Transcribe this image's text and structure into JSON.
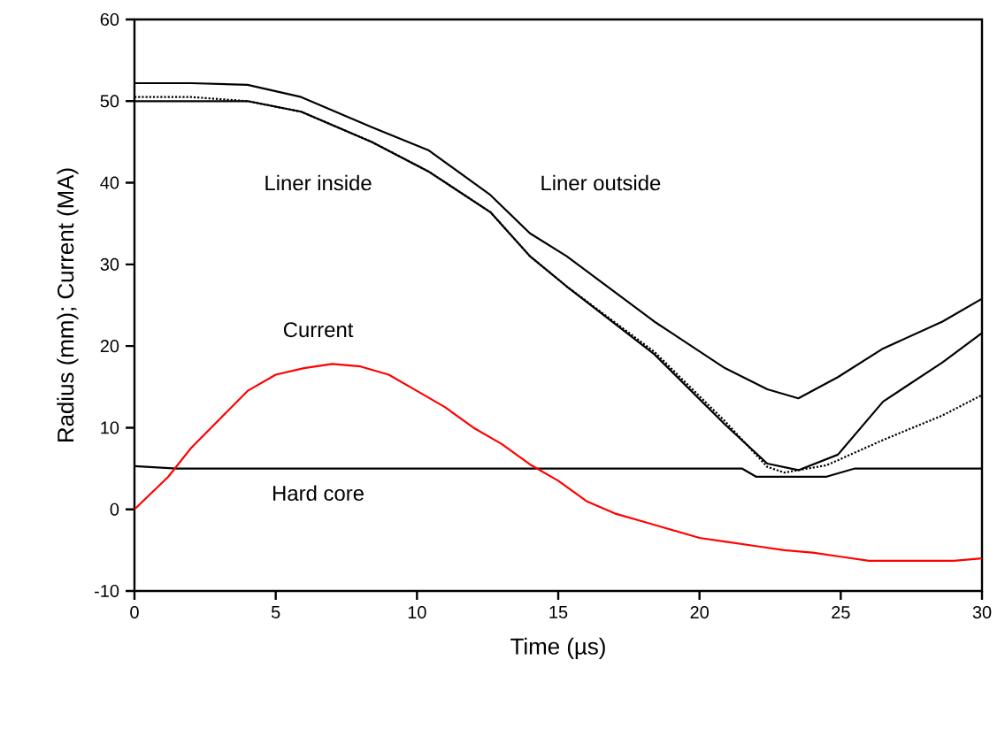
{
  "chart_data": {
    "type": "line",
    "xlabel": "Time (µs)",
    "ylabel": "Radius (mm); Current (MA)",
    "xlim": [
      0,
      30
    ],
    "ylim": [
      -10,
      60
    ],
    "xticks": [
      0,
      5,
      10,
      15,
      20,
      25,
      30
    ],
    "yticks": [
      -10,
      0,
      10,
      20,
      30,
      40,
      50,
      60
    ],
    "grid": false,
    "legend": false,
    "marker": "none",
    "series": [
      {
        "name": "Liner inside",
        "color": "#000000",
        "line_style": "solid",
        "x": [
          0,
          2,
          4,
          5.9,
          8.4,
          10.4,
          12.6,
          14,
          15.3,
          18.4,
          20.9,
          22.4,
          23.5,
          24.9,
          26.5,
          28.6,
          30
        ],
        "values": [
          50,
          50,
          50,
          48.7,
          45,
          41.4,
          36.4,
          31,
          27.3,
          19,
          10.4,
          5.6,
          4.8,
          6.7,
          13.2,
          18,
          21.6
        ]
      },
      {
        "name": "Liner outside",
        "color": "#000000",
        "line_style": "solid",
        "x": [
          0,
          2,
          4,
          5.9,
          8.4,
          10.4,
          12.6,
          14,
          15.3,
          18.4,
          20.9,
          22.4,
          23.5,
          24.9,
          26.5,
          28.6,
          30
        ],
        "values": [
          52.2,
          52.2,
          52,
          50.5,
          46.8,
          44,
          38.5,
          33.8,
          31,
          23,
          17.3,
          14.7,
          13.6,
          16.2,
          19.7,
          23,
          25.8
        ]
      },
      {
        "color": "#000000",
        "line_style": "dotted",
        "x": [
          0,
          2,
          4,
          5.9,
          8.4,
          10.4,
          12.6,
          14,
          15.3,
          18.4,
          20.9,
          22.4,
          23,
          24.5,
          26.5,
          28.6,
          30
        ],
        "values": [
          50.5,
          50.5,
          50,
          48.7,
          45,
          41.4,
          36.4,
          31,
          27.3,
          19.3,
          10.8,
          5.2,
          4.5,
          5.4,
          8.5,
          11.5,
          14
        ]
      },
      {
        "name": "Hard core",
        "color": "#000000",
        "line_style": "solid",
        "x": [
          0,
          1.5,
          21.5,
          22,
          24.5,
          25.5,
          30
        ],
        "values": [
          5.3,
          5,
          5,
          4,
          4,
          5,
          5
        ]
      },
      {
        "name": "Current",
        "color": "#ff0000",
        "line_style": "solid",
        "x": [
          0,
          0.6,
          1.2,
          2,
          3,
          4,
          5,
          6,
          7,
          8,
          9,
          10,
          11,
          12,
          13,
          14,
          15,
          16,
          17,
          18,
          19,
          20,
          21,
          22,
          23,
          24,
          25,
          26,
          27,
          28,
          29,
          30
        ],
        "values": [
          0,
          2,
          4,
          7.5,
          11,
          14.5,
          16.5,
          17.3,
          17.8,
          17.5,
          16.5,
          14.5,
          12.5,
          10,
          8,
          5.5,
          3.5,
          1,
          -0.5,
          -1.5,
          -2.5,
          -3.5,
          -4,
          -4.5,
          -5,
          -5.3,
          -5.8,
          -6.3,
          -6.3,
          -6.3,
          -6.3,
          -6
        ]
      }
    ]
  }
}
